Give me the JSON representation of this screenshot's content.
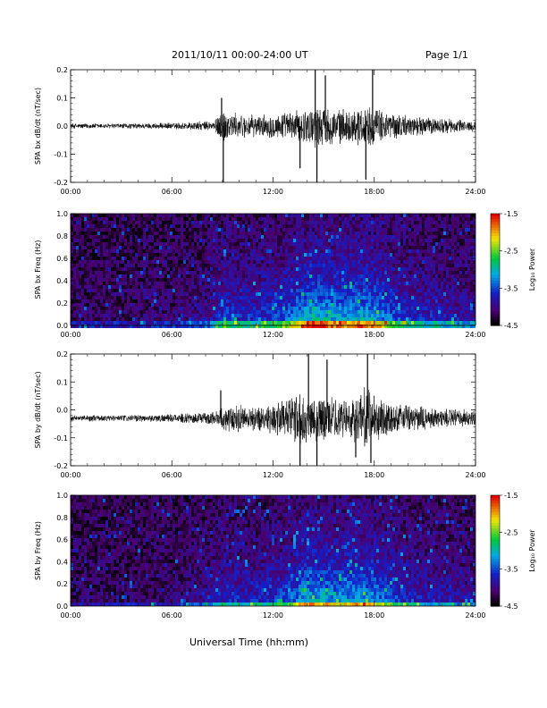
{
  "header": {
    "title": "2011/10/11  00:00-24:00 UT",
    "page": "Page 1/1"
  },
  "xaxis": {
    "label": "Universal Time (hh:mm)",
    "ticks": [
      "00:00",
      "06:00",
      "12:00",
      "18:00",
      "24:00"
    ]
  },
  "chart_data": [
    {
      "type": "line",
      "ylabel": "SPA bx dB/dt (nT/sec)",
      "xlim": [
        0,
        24
      ],
      "ylim": [
        -0.2,
        0.2
      ],
      "yticks": [
        "-0.2",
        "-0.1",
        "0.0",
        "0.1",
        "0.2"
      ],
      "baseline": 0.0,
      "envelope": {
        "x": [
          0,
          3,
          6,
          8.5,
          9.0,
          9.5,
          11,
          12.5,
          13.5,
          14.5,
          15.5,
          16.5,
          17.5,
          18.5,
          20,
          22,
          24
        ],
        "amp": [
          0.01,
          0.01,
          0.012,
          0.02,
          0.07,
          0.05,
          0.04,
          0.05,
          0.06,
          0.08,
          0.07,
          0.06,
          0.08,
          0.06,
          0.04,
          0.03,
          0.02
        ]
      },
      "spikes": [
        {
          "x": 8.95,
          "y": 0.1
        },
        {
          "x": 9.05,
          "y": -0.2
        },
        {
          "x": 14.5,
          "y": 0.2
        },
        {
          "x": 14.6,
          "y": -0.2
        },
        {
          "x": 15.1,
          "y": 0.18
        },
        {
          "x": 17.5,
          "y": -0.19
        },
        {
          "x": 17.9,
          "y": 0.2
        },
        {
          "x": 13.6,
          "y": -0.15
        }
      ]
    },
    {
      "type": "heatmap",
      "ylabel": "SPA bx Freq (Hz)",
      "xlim": [
        0,
        24
      ],
      "ylim": [
        0,
        1.0
      ],
      "yticks": [
        "0.0",
        "0.2",
        "0.4",
        "0.6",
        "0.8",
        "1.0"
      ],
      "colorbar": {
        "label": "Log₁₀ Power",
        "range": [
          -4.5,
          -1.5
        ],
        "ticks": [
          "-1.5",
          "-2.5",
          "-3.5",
          "-4.5"
        ]
      },
      "activity": {
        "x": [
          0,
          3,
          6,
          8,
          9,
          10,
          11,
          12,
          13,
          14,
          15,
          16,
          17,
          18,
          19,
          20,
          22,
          24
        ],
        "level": [
          0.05,
          0.05,
          0.08,
          0.15,
          0.35,
          0.3,
          0.3,
          0.35,
          0.45,
          0.65,
          0.6,
          0.55,
          0.6,
          0.55,
          0.4,
          0.3,
          0.25,
          0.2
        ]
      }
    },
    {
      "type": "line",
      "ylabel": "SPA by dB/dt (nT/sec)",
      "xlim": [
        0,
        24
      ],
      "ylim": [
        -0.2,
        0.2
      ],
      "yticks": [
        "-0.2",
        "-0.1",
        "0.0",
        "0.1",
        "0.2"
      ],
      "baseline": -0.03,
      "envelope": {
        "x": [
          0,
          3,
          6,
          8.5,
          9.0,
          10,
          11,
          12,
          13,
          13.5,
          14.5,
          15.5,
          16.5,
          17.5,
          18.5,
          20,
          22,
          24
        ],
        "amp": [
          0.012,
          0.012,
          0.015,
          0.025,
          0.05,
          0.05,
          0.05,
          0.06,
          0.08,
          0.11,
          0.09,
          0.08,
          0.07,
          0.12,
          0.07,
          0.05,
          0.04,
          0.03
        ]
      },
      "spikes": [
        {
          "x": 8.9,
          "y": 0.07
        },
        {
          "x": 13.6,
          "y": -0.2
        },
        {
          "x": 14.1,
          "y": 0.2
        },
        {
          "x": 14.6,
          "y": -0.2
        },
        {
          "x": 17.6,
          "y": 0.2
        },
        {
          "x": 17.8,
          "y": -0.19
        },
        {
          "x": 16.9,
          "y": -0.17
        },
        {
          "x": 15.2,
          "y": 0.18
        }
      ]
    },
    {
      "type": "heatmap",
      "ylabel": "SPA by Freq (Hz)",
      "xlim": [
        0,
        24
      ],
      "ylim": [
        0,
        1.0
      ],
      "yticks": [
        "0.0",
        "0.2",
        "0.4",
        "0.6",
        "0.8",
        "1.0"
      ],
      "colorbar": {
        "label": "Log₁₀ Power",
        "range": [
          -4.5,
          -1.5
        ],
        "ticks": [
          "-1.5",
          "-2.5",
          "-3.5",
          "-4.5"
        ]
      },
      "activity": {
        "x": [
          0,
          3,
          6,
          8,
          9,
          10,
          11,
          12,
          13,
          14,
          15,
          16,
          17,
          18,
          19,
          20,
          22,
          24
        ],
        "level": [
          0.05,
          0.05,
          0.08,
          0.15,
          0.3,
          0.28,
          0.28,
          0.32,
          0.4,
          0.6,
          0.55,
          0.5,
          0.58,
          0.5,
          0.38,
          0.28,
          0.22,
          0.18
        ]
      }
    }
  ]
}
